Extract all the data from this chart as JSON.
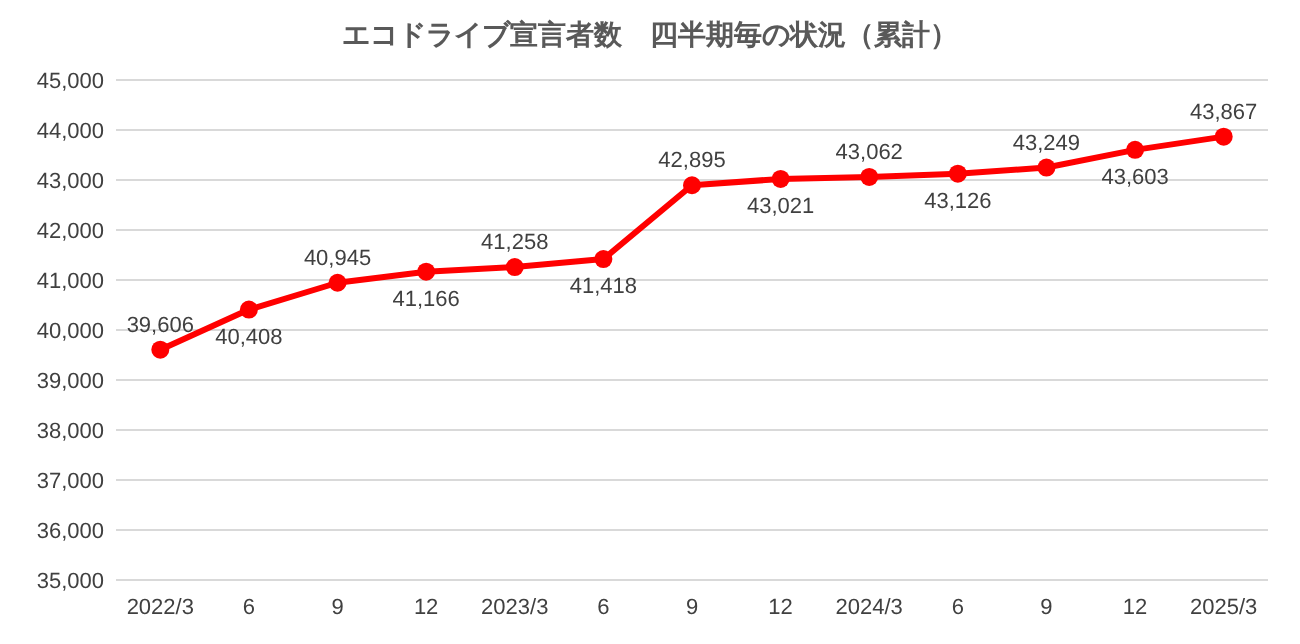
{
  "chart_data": {
    "type": "line",
    "title": "エコドライブ宣言者数　四半期毎の状況（累計）",
    "categories": [
      "2022/3",
      "6",
      "9",
      "12",
      "2023/3",
      "6",
      "9",
      "12",
      "2024/3",
      "6",
      "9",
      "12",
      "2025/3"
    ],
    "series": [
      {
        "color": "#ff0000",
        "values": [
          39606,
          40408,
          40945,
          41166,
          41258,
          41418,
          42895,
          43021,
          43062,
          43126,
          43249,
          43603,
          43867
        ],
        "value_labels": [
          "39,606",
          "40,408",
          "40,945",
          "41,166",
          "41,258",
          "41,418",
          "42,895",
          "43,021",
          "43,062",
          "43,126",
          "43,249",
          "43,603",
          "43,867"
        ]
      }
    ],
    "ylim": [
      35000,
      45000
    ],
    "yticks": [
      {
        "value": 35000,
        "label": "35,000"
      },
      {
        "value": 36000,
        "label": "36,000"
      },
      {
        "value": 37000,
        "label": "37,000"
      },
      {
        "value": 38000,
        "label": "38,000"
      },
      {
        "value": 39000,
        "label": "39,000"
      },
      {
        "value": 40000,
        "label": "40,000"
      },
      {
        "value": 41000,
        "label": "41,000"
      },
      {
        "value": 42000,
        "label": "42,000"
      },
      {
        "value": 43000,
        "label": "43,000"
      },
      {
        "value": 44000,
        "label": "44,000"
      },
      {
        "value": 45000,
        "label": "45,000"
      }
    ],
    "grid": "y",
    "marker": "circle",
    "line_style": "solid"
  }
}
